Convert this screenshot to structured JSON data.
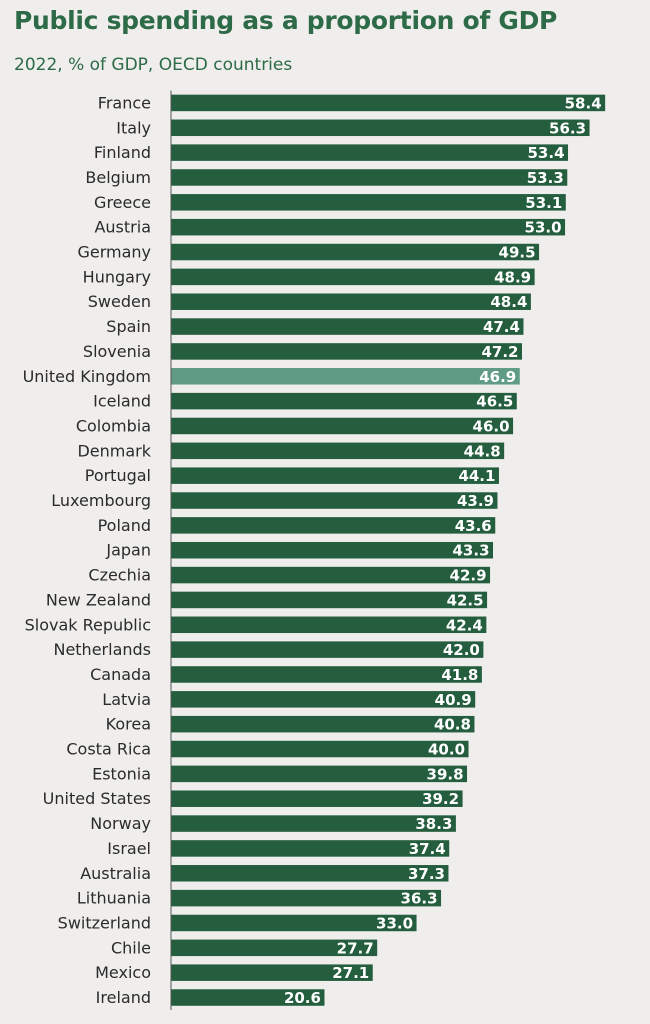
{
  "title": "Public spending as a proportion of GDP",
  "subtitle": "2022, % of GDP, OECD countries",
  "colors": {
    "bar": "#245e3e",
    "highlight": "#5f9b85",
    "axis": "#555555",
    "title": "#2d6a47"
  },
  "chart_data": {
    "type": "bar",
    "orientation": "horizontal",
    "categories": [
      "France",
      "Italy",
      "Finland",
      "Belgium",
      "Greece",
      "Austria",
      "Germany",
      "Hungary",
      "Sweden",
      "Spain",
      "Slovenia",
      "United Kingdom",
      "Iceland",
      "Colombia",
      "Denmark",
      "Portugal",
      "Luxembourg",
      "Poland",
      "Japan",
      "Czechia",
      "New Zealand",
      "Slovak Republic",
      "Netherlands",
      "Canada",
      "Latvia",
      "Korea",
      "Costa Rica",
      "Estonia",
      "United States",
      "Norway",
      "Israel",
      "Australia",
      "Lithuania",
      "Switzerland",
      "Chile",
      "Mexico",
      "Ireland"
    ],
    "values": [
      58.4,
      56.3,
      53.4,
      53.3,
      53.1,
      53.0,
      49.5,
      48.9,
      48.4,
      47.4,
      47.2,
      46.9,
      46.5,
      46.0,
      44.8,
      44.1,
      43.9,
      43.6,
      43.3,
      42.9,
      42.5,
      42.4,
      42.0,
      41.8,
      40.9,
      40.8,
      40.0,
      39.8,
      39.2,
      38.3,
      37.4,
      37.3,
      36.3,
      33.0,
      27.7,
      27.1,
      20.6
    ],
    "value_labels": [
      "58.4",
      "56.3",
      "53.4",
      "53.3",
      "53.1",
      "53.0",
      "49.5",
      "48.9",
      "48.4",
      "47.4",
      "47.2",
      "46.9",
      "46.5",
      "46.0",
      "44.8",
      "44.1",
      "43.9",
      "43.6",
      "43.3",
      "42.9",
      "42.5",
      "42.4",
      "42.0",
      "41.8",
      "40.9",
      "40.8",
      "40.0",
      "39.8",
      "39.2",
      "38.3",
      "37.4",
      "37.3",
      "36.3",
      "33.0",
      "27.7",
      "27.1",
      "20.6"
    ],
    "highlight": "United Kingdom",
    "xlim": [
      0,
      60
    ],
    "xlabel": "",
    "ylabel": "",
    "grid": false,
    "legend": "none"
  }
}
